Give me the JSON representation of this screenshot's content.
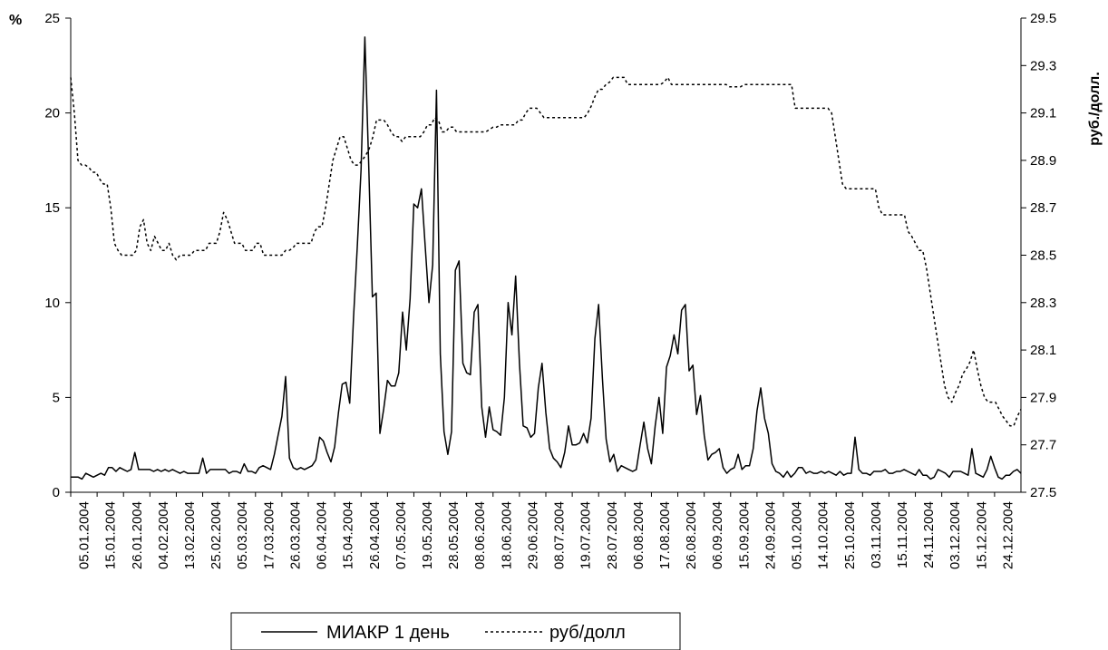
{
  "chart_data": {
    "type": "line",
    "left_axis_unit": "%",
    "right_axis_unit": "руб./долл.",
    "ylim_left": [
      0,
      25
    ],
    "ylim_right": [
      27.5,
      29.5
    ],
    "left_ticks": [
      "0",
      "5",
      "10",
      "15",
      "20",
      "25"
    ],
    "right_ticks": [
      "27.5",
      "27.7",
      "27.9",
      "28.1",
      "28.3",
      "28.5",
      "28.7",
      "28.9",
      "29.1",
      "29.3",
      "29.5"
    ],
    "x_tick_labels": [
      "05.01.2004",
      "15.01.2004",
      "26.01.2004",
      "04.02.2004",
      "13.02.2004",
      "25.02.2004",
      "05.03.2004",
      "17.03.2004",
      "26.03.2004",
      "06.04.2004",
      "15.04.2004",
      "26.04.2004",
      "07.05.2004",
      "19.05.2004",
      "28.05.2004",
      "08.06.2004",
      "18.06.2004",
      "29.06.2004",
      "08.07.2004",
      "19.07.2004",
      "28.07.2004",
      "06.08.2004",
      "17.08.2004",
      "26.08.2004",
      "06.09.2004",
      "15.09.2004",
      "24.09.2004",
      "05.10.2004",
      "14.10.2004",
      "25.10.2004",
      "03.11.2004",
      "15.11.2004",
      "24.11.2004",
      "03.12.2004",
      "15.12.2004",
      "24.12.2004"
    ],
    "grid": false,
    "legend_position": "bottom",
    "series": [
      {
        "name": "МИАКР 1 день",
        "axis": "left",
        "style": "solid",
        "values": [
          0.8,
          0.8,
          0.8,
          0.7,
          1.0,
          0.9,
          0.8,
          0.9,
          1.0,
          0.9,
          1.3,
          1.3,
          1.1,
          1.3,
          1.2,
          1.1,
          1.2,
          2.1,
          1.2,
          1.2,
          1.2,
          1.2,
          1.1,
          1.2,
          1.1,
          1.2,
          1.1,
          1.2,
          1.1,
          1.0,
          1.1,
          1.0,
          1.0,
          1.0,
          1.0,
          1.8,
          1.0,
          1.2,
          1.2,
          1.2,
          1.2,
          1.2,
          1.0,
          1.1,
          1.1,
          1.0,
          1.5,
          1.1,
          1.1,
          1.0,
          1.3,
          1.4,
          1.3,
          1.2,
          2.0,
          3.0,
          4.0,
          6.1,
          1.8,
          1.3,
          1.2,
          1.3,
          1.2,
          1.3,
          1.4,
          1.7,
          2.9,
          2.7,
          2.1,
          1.6,
          2.4,
          4.2,
          5.7,
          5.8,
          4.7,
          9.2,
          13.0,
          17.0,
          24.0,
          17.5,
          10.3,
          10.5,
          3.1,
          4.4,
          5.9,
          5.6,
          5.6,
          6.3,
          9.5,
          7.5,
          10.2,
          15.2,
          15.0,
          16.0,
          13.0,
          10.0,
          12.0,
          21.2,
          7.3,
          3.2,
          2.0,
          3.2,
          11.7,
          12.2,
          6.8,
          6.3,
          6.2,
          9.5,
          9.9,
          4.5,
          2.9,
          4.5,
          3.3,
          3.2,
          3.0,
          5.0,
          10.0,
          8.3,
          11.4,
          6.8,
          3.5,
          3.4,
          2.9,
          3.1,
          5.5,
          6.8,
          4.2,
          2.3,
          1.8,
          1.6,
          1.3,
          2.1,
          3.5,
          2.5,
          2.5,
          2.6,
          3.1,
          2.6,
          3.9,
          8.1,
          9.9,
          6.0,
          2.8,
          1.6,
          2.0,
          1.1,
          1.4,
          1.3,
          1.2,
          1.1,
          1.2,
          2.5,
          3.7,
          2.3,
          1.5,
          3.5,
          5.0,
          3.1,
          6.6,
          7.2,
          8.3,
          7.3,
          9.6,
          9.9,
          6.4,
          6.7,
          4.1,
          5.1,
          3.0,
          1.7,
          2.0,
          2.1,
          2.3,
          1.3,
          1.0,
          1.2,
          1.3,
          2.0,
          1.2,
          1.4,
          1.4,
          2.3,
          4.3,
          5.5,
          3.9,
          3.1,
          1.5,
          1.1,
          1.0,
          0.8,
          1.1,
          0.8,
          1.0,
          1.3,
          1.3,
          1.0,
          1.1,
          1.0,
          1.0,
          1.1,
          1.0,
          1.1,
          1.0,
          0.9,
          1.1,
          0.9,
          1.0,
          1.0,
          2.9,
          1.2,
          1.0,
          1.0,
          0.9,
          1.1,
          1.1,
          1.1,
          1.2,
          1.0,
          1.0,
          1.1,
          1.1,
          1.2,
          1.1,
          1.0,
          0.9,
          1.2,
          0.9,
          0.9,
          0.7,
          0.8,
          1.2,
          1.1,
          1.0,
          0.8,
          1.1,
          1.1,
          1.1,
          1.0,
          0.9,
          2.3,
          1.0,
          0.9,
          0.8,
          1.2,
          1.9,
          1.3,
          0.8,
          0.7,
          0.9,
          0.9,
          1.1,
          1.2,
          1.0
        ]
      },
      {
        "name": "руб/долл",
        "axis": "right",
        "style": "dotted",
        "values": [
          29.25,
          29.1,
          28.9,
          28.88,
          28.88,
          28.87,
          28.85,
          28.85,
          28.82,
          28.8,
          28.8,
          28.7,
          28.55,
          28.52,
          28.5,
          28.5,
          28.5,
          28.5,
          28.52,
          28.62,
          28.65,
          28.55,
          28.52,
          28.58,
          28.55,
          28.52,
          28.52,
          28.55,
          28.5,
          28.48,
          28.5,
          28.5,
          28.5,
          28.5,
          28.52,
          28.52,
          28.52,
          28.52,
          28.55,
          28.55,
          28.55,
          28.6,
          28.68,
          28.65,
          28.6,
          28.55,
          28.55,
          28.55,
          28.52,
          28.52,
          28.52,
          28.55,
          28.55,
          28.5,
          28.5,
          28.5,
          28.5,
          28.5,
          28.5,
          28.52,
          28.52,
          28.53,
          28.55,
          28.55,
          28.55,
          28.55,
          28.55,
          28.6,
          28.62,
          28.62,
          28.7,
          28.8,
          28.9,
          28.95,
          29.0,
          29.0,
          28.95,
          28.9,
          28.88,
          28.88,
          28.9,
          28.92,
          28.95,
          29.0,
          29.07,
          29.07,
          29.07,
          29.05,
          29.02,
          29.0,
          29.0,
          28.98,
          29.0,
          29.0,
          29.0,
          29.0,
          29.0,
          29.02,
          29.05,
          29.05,
          29.08,
          29.07,
          29.02,
          29.02,
          29.04,
          29.04,
          29.02,
          29.02,
          29.02,
          29.02,
          29.02,
          29.02,
          29.02,
          29.02,
          29.02,
          29.03,
          29.04,
          29.04,
          29.05,
          29.05,
          29.05,
          29.05,
          29.05,
          29.07,
          29.07,
          29.1,
          29.12,
          29.12,
          29.12,
          29.1,
          29.08,
          29.08,
          29.08,
          29.08,
          29.08,
          29.08,
          29.08,
          29.08,
          29.08,
          29.08,
          29.08,
          29.08,
          29.1,
          29.13,
          29.17,
          29.2,
          29.2,
          29.22,
          29.23,
          29.25,
          29.25,
          29.25,
          29.25,
          29.22,
          29.22,
          29.22,
          29.22,
          29.22,
          29.22,
          29.22,
          29.22,
          29.22,
          29.22,
          29.23,
          29.25,
          29.22,
          29.22,
          29.22,
          29.22,
          29.22,
          29.22,
          29.22,
          29.22,
          29.22,
          29.22,
          29.22,
          29.22,
          29.22,
          29.22,
          29.22,
          29.22,
          29.21,
          29.21,
          29.21,
          29.21,
          29.22,
          29.22,
          29.22,
          29.22,
          29.22,
          29.22,
          29.22,
          29.22,
          29.22,
          29.22,
          29.22,
          29.22,
          29.22,
          29.22,
          29.12,
          29.12,
          29.12,
          29.12,
          29.12,
          29.12,
          29.12,
          29.12,
          29.12,
          29.12,
          29.1,
          29.0,
          28.9,
          28.8,
          28.78,
          28.78,
          28.78,
          28.78,
          28.78,
          28.78,
          28.78,
          28.78,
          28.78,
          28.7,
          28.67,
          28.67,
          28.67,
          28.67,
          28.67,
          28.67,
          28.67,
          28.6,
          28.58,
          28.55,
          28.52,
          28.52,
          28.45,
          28.35,
          28.25,
          28.15,
          28.05,
          27.95,
          27.9,
          27.88,
          27.92,
          27.95,
          28.0,
          28.02,
          28.05,
          28.1,
          28.02,
          27.95,
          27.9,
          27.88,
          27.88,
          27.88,
          27.85,
          27.82,
          27.8,
          27.78,
          27.78,
          27.82,
          27.85
        ]
      }
    ]
  }
}
